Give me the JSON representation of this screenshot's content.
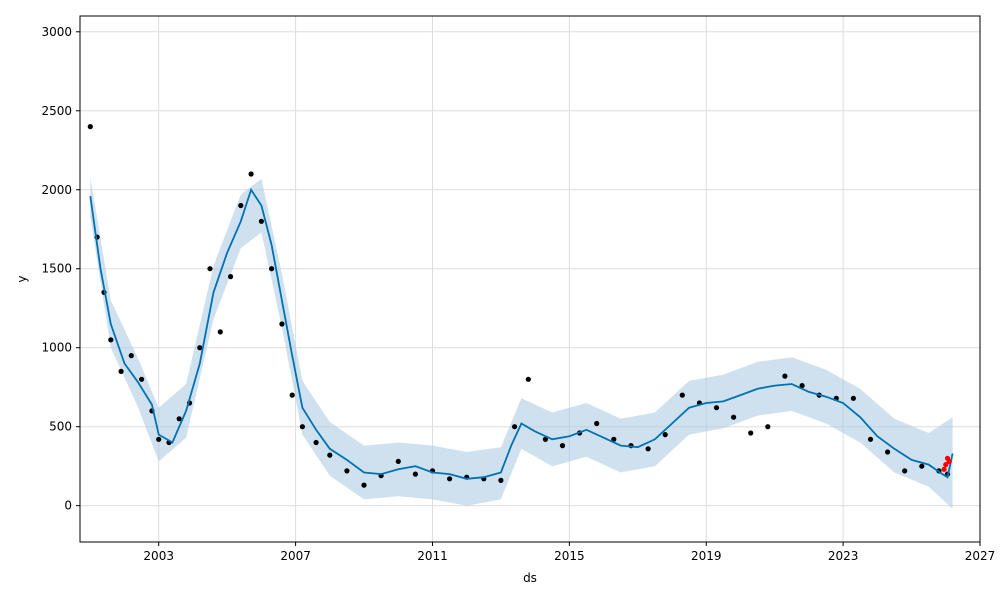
{
  "chart_data": {
    "type": "line",
    "title": "",
    "xlabel": "ds",
    "ylabel": "y",
    "xlim": [
      2000.7,
      2027.0
    ],
    "ylim": [
      -230,
      3100
    ],
    "grid": true,
    "x_ticks": [
      2003,
      2007,
      2011,
      2015,
      2019,
      2023,
      2027
    ],
    "x_tick_labels": [
      "2003",
      "2007",
      "2011",
      "2015",
      "2019",
      "2023",
      "2027"
    ],
    "y_ticks": [
      0,
      500,
      1000,
      1500,
      2000,
      2500,
      3000
    ],
    "y_tick_labels": [
      "0",
      "500",
      "1000",
      "1500",
      "2000",
      "2500",
      "3000"
    ],
    "colors": {
      "forecast": "#0072B2",
      "band": "#a7c8e1",
      "actual": "#000000",
      "highlight": "#ff0000",
      "grid": "#dddddd"
    },
    "series": [
      {
        "role": "forecast",
        "x": [
          2001.0,
          2001.3,
          2001.6,
          2002.0,
          2002.4,
          2002.8,
          2003.0,
          2003.4,
          2003.8,
          2004.2,
          2004.6,
          2005.0,
          2005.4,
          2005.7,
          2006.0,
          2006.3,
          2006.6,
          2006.9,
          2007.2,
          2007.6,
          2008.0,
          2008.5,
          2009.0,
          2009.5,
          2010.0,
          2010.5,
          2011.0,
          2011.5,
          2012.0,
          2012.5,
          2013.0,
          2013.3,
          2013.6,
          2014.0,
          2014.5,
          2015.0,
          2015.5,
          2016.0,
          2016.5,
          2017.0,
          2017.5,
          2018.0,
          2018.5,
          2019.0,
          2019.5,
          2020.0,
          2020.5,
          2021.0,
          2021.5,
          2022.0,
          2022.5,
          2023.0,
          2023.5,
          2024.0,
          2024.5,
          2025.0,
          2025.5,
          2025.9,
          2026.05,
          2026.2
        ],
        "y": [
          1960,
          1500,
          1150,
          900,
          780,
          640,
          450,
          400,
          600,
          900,
          1350,
          1600,
          1800,
          2000,
          1900,
          1650,
          1300,
          950,
          620,
          480,
          360,
          290,
          210,
          200,
          230,
          250,
          210,
          200,
          170,
          180,
          210,
          380,
          520,
          470,
          420,
          440,
          480,
          430,
          380,
          370,
          420,
          520,
          620,
          650,
          660,
          700,
          740,
          760,
          770,
          720,
          690,
          650,
          560,
          440,
          360,
          290,
          260,
          200,
          180,
          330
        ]
      },
      {
        "role": "uncertainty-band",
        "x": [
          2001.0,
          2001.6,
          2002.4,
          2003.0,
          2003.8,
          2004.6,
          2005.4,
          2006.0,
          2006.6,
          2007.2,
          2008.0,
          2009.0,
          2010.0,
          2011.0,
          2012.0,
          2013.0,
          2013.6,
          2014.5,
          2015.5,
          2016.5,
          2017.5,
          2018.5,
          2019.5,
          2020.5,
          2021.5,
          2022.5,
          2023.5,
          2024.5,
          2025.5,
          2026.2
        ],
        "upper": [
          2080,
          1300,
          930,
          620,
          770,
          1520,
          1970,
          2070,
          1470,
          790,
          530,
          380,
          400,
          380,
          340,
          370,
          680,
          590,
          650,
          550,
          590,
          790,
          830,
          910,
          940,
          860,
          740,
          550,
          460,
          560
        ],
        "lower": [
          1830,
          1000,
          620,
          280,
          430,
          1180,
          1630,
          1730,
          1130,
          450,
          190,
          40,
          60,
          40,
          0,
          40,
          360,
          250,
          310,
          210,
          250,
          450,
          490,
          570,
          600,
          520,
          400,
          210,
          120,
          -20
        ]
      },
      {
        "role": "observed",
        "x": [
          2001.0,
          2001.2,
          2001.4,
          2001.6,
          2001.9,
          2002.2,
          2002.5,
          2002.8,
          2003.0,
          2003.3,
          2003.6,
          2003.9,
          2004.2,
          2004.5,
          2004.8,
          2005.1,
          2005.4,
          2005.7,
          2006.0,
          2006.3,
          2006.6,
          2006.9,
          2007.2,
          2007.6,
          2008.0,
          2008.5,
          2009.0,
          2009.5,
          2010.0,
          2010.5,
          2011.0,
          2011.5,
          2012.0,
          2012.5,
          2013.0,
          2013.4,
          2013.8,
          2014.3,
          2014.8,
          2015.3,
          2015.8,
          2016.3,
          2016.8,
          2017.3,
          2017.8,
          2018.3,
          2018.8,
          2019.3,
          2019.8,
          2020.3,
          2020.8,
          2021.3,
          2021.8,
          2022.3,
          2022.8,
          2023.3,
          2023.8,
          2024.3,
          2024.8,
          2025.3,
          2025.8,
          2026.05
        ],
        "y": [
          2400,
          1700,
          1350,
          1050,
          850,
          950,
          800,
          600,
          420,
          400,
          550,
          650,
          1000,
          1500,
          1100,
          1450,
          1900,
          2100,
          1800,
          1500,
          1150,
          700,
          500,
          400,
          320,
          220,
          130,
          190,
          280,
          200,
          220,
          170,
          180,
          170,
          160,
          500,
          800,
          420,
          380,
          460,
          520,
          420,
          380,
          360,
          450,
          700,
          650,
          620,
          560,
          460,
          500,
          820,
          760,
          700,
          680,
          680,
          420,
          340,
          220,
          250,
          220,
          200
        ]
      },
      {
        "role": "observed-recent",
        "x": [
          2025.95,
          2026.0,
          2026.05,
          2026.1
        ],
        "y": [
          230,
          260,
          300,
          280
        ]
      }
    ]
  }
}
